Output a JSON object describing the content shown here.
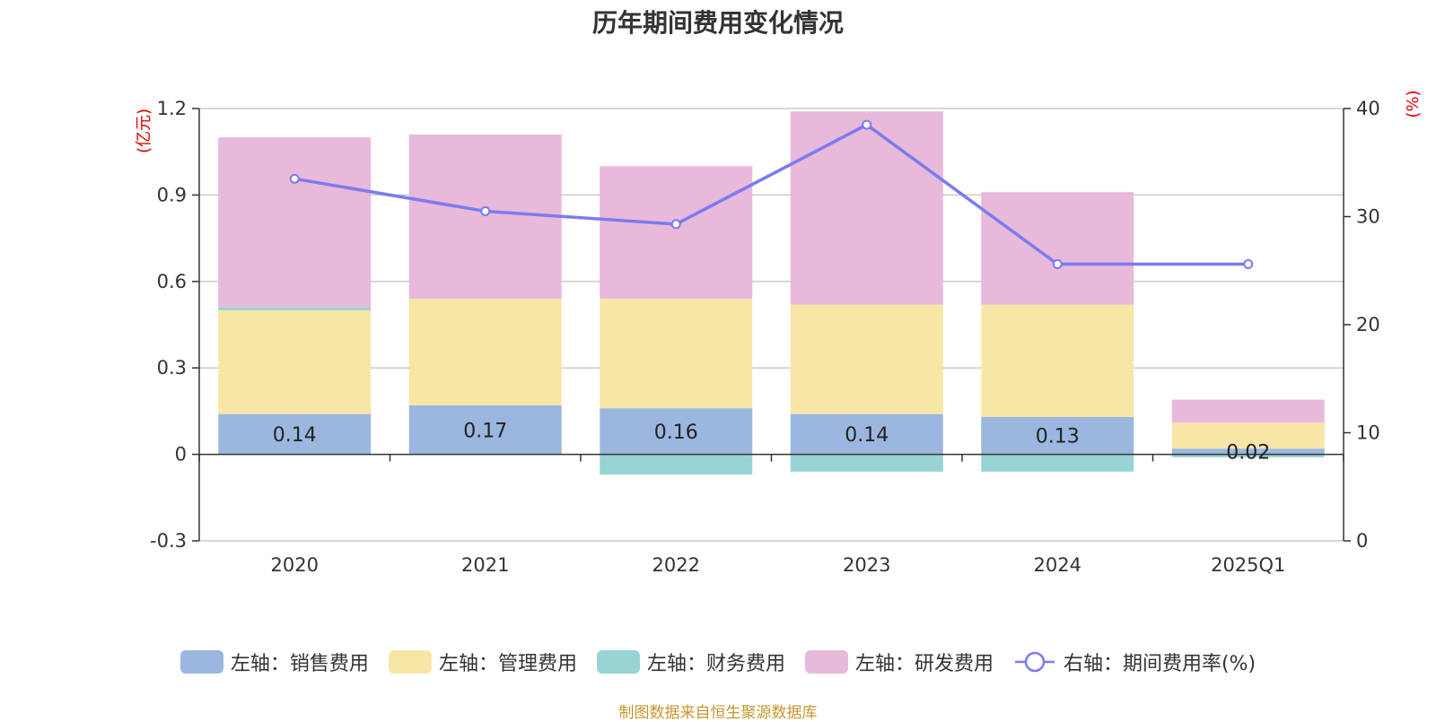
{
  "chart_data": {
    "type": "bar",
    "title": "历年期间费用变化情况",
    "categories": [
      "2020",
      "2021",
      "2022",
      "2023",
      "2024",
      "2025Q1"
    ],
    "left_axis": {
      "unit": "(亿元)",
      "ylim": [
        -0.3,
        1.2
      ],
      "ticks": [
        "-0.3",
        "0",
        "0.3",
        "0.6",
        "0.9",
        "1.2"
      ]
    },
    "right_axis": {
      "unit": "(%)",
      "ylim": [
        0,
        40
      ],
      "ticks": [
        "0",
        "10",
        "20",
        "30",
        "40"
      ]
    },
    "series": [
      {
        "name": "左轴：销售费用",
        "type": "bar",
        "stack": "fee",
        "color": "#9bb7e0",
        "values": [
          0.14,
          0.17,
          0.16,
          0.14,
          0.13,
          0.02
        ],
        "labels": [
          "0.14",
          "0.17",
          "0.16",
          "0.14",
          "0.13",
          "0.02"
        ]
      },
      {
        "name": "左轴：管理费用",
        "type": "bar",
        "stack": "fee",
        "color": "#f8e6a6",
        "values": [
          0.36,
          0.37,
          0.38,
          0.38,
          0.39,
          0.09
        ]
      },
      {
        "name": "左轴：财务费用",
        "type": "bar",
        "stack": "fee",
        "color": "#97d4d3",
        "values": [
          0.01,
          0.0,
          -0.07,
          -0.06,
          -0.06,
          -0.01
        ]
      },
      {
        "name": "左轴：研发费用",
        "type": "bar",
        "stack": "fee",
        "color": "#e8b9da",
        "values": [
          0.59,
          0.57,
          0.46,
          0.67,
          0.39,
          0.08
        ]
      },
      {
        "name": "右轴：期间费用率(%)",
        "type": "line",
        "axis": "right",
        "color": "#7b7bef",
        "values": [
          33.5,
          30.5,
          29.3,
          38.5,
          25.6,
          25.6
        ]
      }
    ],
    "grid": true,
    "legend_position": "bottom"
  },
  "source_note": "制图数据来自恒生聚源数据库"
}
